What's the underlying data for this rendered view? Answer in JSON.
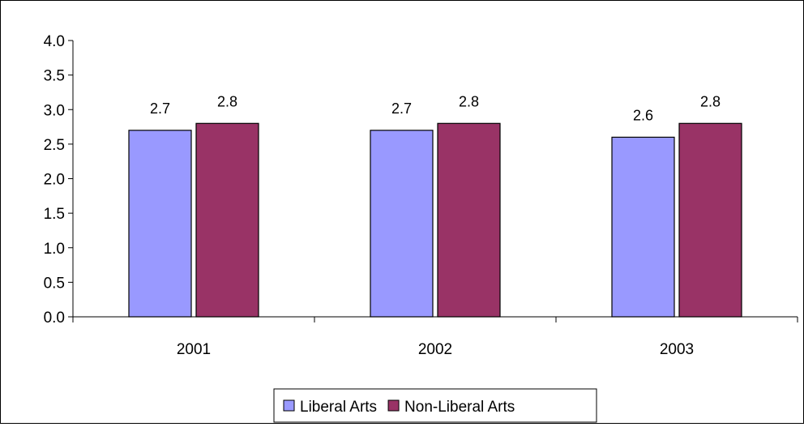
{
  "chart_data": {
    "type": "bar",
    "title": "",
    "xlabel": "",
    "ylabel": "",
    "categories": [
      "2001",
      "2002",
      "2003"
    ],
    "series": [
      {
        "name": "Liberal Arts",
        "values": [
          2.7,
          2.7,
          2.6
        ],
        "color": "#9999ff",
        "labels": [
          "2.7",
          "2.7",
          "2.6"
        ]
      },
      {
        "name": "Non-Liberal Arts",
        "values": [
          2.8,
          2.8,
          2.8
        ],
        "color": "#993366",
        "labels": [
          "2.8",
          "2.8",
          "2.8"
        ]
      }
    ],
    "ylim": [
      0,
      4
    ],
    "yticks": [
      "0.0",
      "0.5",
      "1.0",
      "1.5",
      "2.0",
      "2.5",
      "3.0",
      "3.5",
      "4.0"
    ],
    "grid": false,
    "legend_position": "bottom"
  }
}
